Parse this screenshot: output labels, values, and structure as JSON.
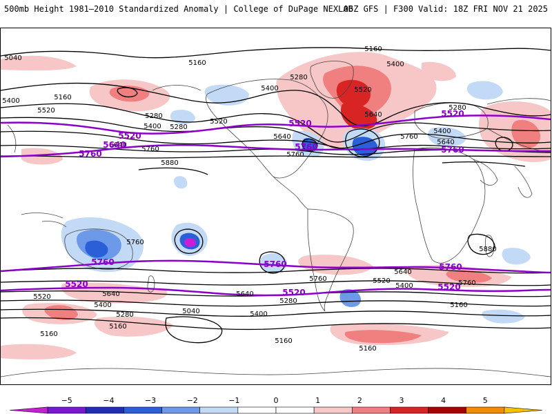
{
  "header": {
    "left": "500mb Height 1981–2010 Standardized Anomaly | College of DuPage NEXLAB",
    "right": "06Z GFS | F300 Valid: 18Z FRI NOV 21 2025"
  },
  "colors": {
    "reference_contour": "#8a00c8",
    "contour": "#000000",
    "coast": "#444444"
  },
  "contour_labels": [
    {
      "text": "5040",
      "name": "label-5040-nw"
    },
    {
      "text": "5160",
      "name": "label-5160-n-pacific"
    },
    {
      "text": "5160",
      "name": "label-5160-arctic"
    },
    {
      "text": "5400",
      "name": "label-5400-greenland"
    },
    {
      "text": "5280",
      "name": "label-5280-canada"
    },
    {
      "text": "5400",
      "name": "label-5400-canada"
    },
    {
      "text": "5520",
      "name": "label-5520-greenland"
    },
    {
      "text": "5640",
      "name": "label-5640-atlantic"
    },
    {
      "text": "5160",
      "name": "label-5160-alaska"
    },
    {
      "text": "5400",
      "name": "label-5400-west"
    },
    {
      "text": "5520",
      "name": "label-5520-west"
    },
    {
      "text": "5280",
      "name": "label-5280-pacific-a"
    },
    {
      "text": "5400",
      "name": "label-5400-pacific"
    },
    {
      "text": "5280",
      "name": "label-5280-pacific-b"
    },
    {
      "text": "5520",
      "name": "label-5520-pacific"
    },
    {
      "text": "5640",
      "name": "label-5640-pacific"
    },
    {
      "text": "5760",
      "name": "label-5760-pacific"
    },
    {
      "text": "5880",
      "name": "label-5880-pacific"
    },
    {
      "text": "5640",
      "name": "label-5640-us"
    },
    {
      "text": "5760",
      "name": "label-5760-us"
    },
    {
      "text": "5760",
      "name": "label-5760-atlantic"
    },
    {
      "text": "5280",
      "name": "label-5280-europe"
    },
    {
      "text": "5400",
      "name": "label-5400-europe"
    },
    {
      "text": "5640",
      "name": "label-5640-europe"
    },
    {
      "text": "5760",
      "name": "label-5760-australia"
    },
    {
      "text": "5880",
      "name": "label-5880-madagascar"
    },
    {
      "text": "5760",
      "name": "label-5760-s-atlantic"
    },
    {
      "text": "5640",
      "name": "label-5640-s-atlantic"
    },
    {
      "text": "5520",
      "name": "label-5520-s-atlantic"
    },
    {
      "text": "5400",
      "name": "label-5400-s-atlantic"
    },
    {
      "text": "5760",
      "name": "label-5760-s-indian"
    },
    {
      "text": "5280",
      "name": "label-5280-s-atlantic"
    },
    {
      "text": "5160",
      "name": "label-5160-s-indian"
    },
    {
      "text": "5640",
      "name": "label-5640-sw"
    },
    {
      "text": "5520",
      "name": "label-5520-sw"
    },
    {
      "text": "5400",
      "name": "label-5400-sw"
    },
    {
      "text": "5280",
      "name": "label-5280-sw"
    },
    {
      "text": "5160",
      "name": "label-5160-sw-a"
    },
    {
      "text": "5160",
      "name": "label-5160-sw-b"
    },
    {
      "text": "5040",
      "name": "label-5040-s-pacific"
    },
    {
      "text": "5640",
      "name": "label-5640-s-pacific"
    },
    {
      "text": "5400",
      "name": "label-5400-s-pacific"
    },
    {
      "text": "5160",
      "name": "label-5160-s-pacific"
    },
    {
      "text": "5160",
      "name": "label-5160-antarctica"
    }
  ],
  "reference_labels": [
    {
      "text": "5520",
      "name": "ref-5520-pacific"
    },
    {
      "text": "5640",
      "name": "ref-5640-pacific"
    },
    {
      "text": "5760",
      "name": "ref-5760-pacific"
    },
    {
      "text": "5520",
      "name": "ref-5520-us"
    },
    {
      "text": "5760",
      "name": "ref-5760-us"
    },
    {
      "text": "5520",
      "name": "ref-5520-europe"
    },
    {
      "text": "5760",
      "name": "ref-5760-europe"
    },
    {
      "text": "5760",
      "name": "ref-5760-australia"
    },
    {
      "text": "5760",
      "name": "ref-5760-pacific-south"
    },
    {
      "text": "5760",
      "name": "ref-5760-indian-south"
    },
    {
      "text": "5520",
      "name": "ref-5520-south-pacific"
    },
    {
      "text": "5520",
      "name": "ref-5520-south-atlantic"
    },
    {
      "text": "5520",
      "name": "ref-5520-south-indian"
    }
  ],
  "colorbar": {
    "ticks": [
      "−5",
      "−4",
      "−3",
      "−2",
      "−1",
      "0",
      "1",
      "2",
      "3",
      "4",
      "5"
    ],
    "colors": [
      "#c71fd6",
      "#7a17d2",
      "#1f2fb4",
      "#2a5fd8",
      "#6d9ae8",
      "#c3daf7",
      "#ffffff",
      "#ffffff",
      "#f7c7c7",
      "#f07f7f",
      "#d92424",
      "#a80000",
      "#f28c00",
      "#f5c200"
    ]
  }
}
